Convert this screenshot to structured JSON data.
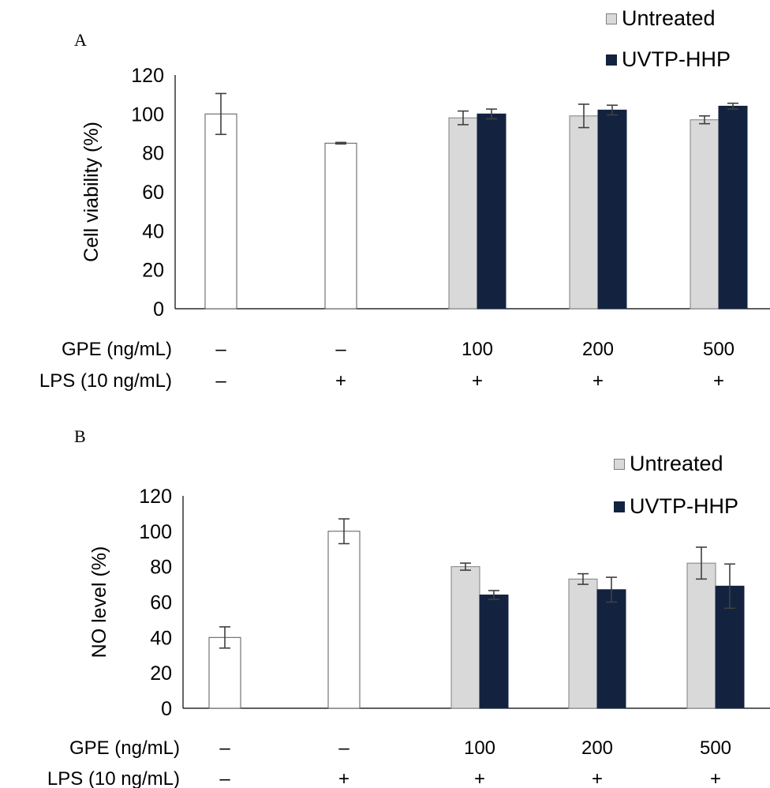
{
  "colors": {
    "control_fill": "#ffffff",
    "control_stroke": "#595959",
    "untreated": "#d9d9d9",
    "untreated_stroke": "#7f7f7f",
    "uvtp": "#13233f",
    "error_bar": "#404040",
    "axis": "#000000"
  },
  "conditions": {
    "gpe_label": "GPE (ng/mL)",
    "lps_label": "LPS (10 ng/mL)",
    "gpe_values": [
      "–",
      "–",
      "100",
      "200",
      "500"
    ],
    "lps_values": [
      "–",
      "+",
      "+",
      "+",
      "+"
    ]
  },
  "chart_data": [
    {
      "panel": "A",
      "type": "bar",
      "ylabel": "Cell viability (%)",
      "xlabel": "",
      "ylim": [
        0,
        120
      ],
      "yticks": [
        0,
        20,
        40,
        60,
        80,
        100,
        120
      ],
      "legend_position": "top-right",
      "legend": [
        "Untreated",
        "UVTP-HHP"
      ],
      "controls": [
        {
          "value": 100,
          "error": 10.5
        },
        {
          "value": 85,
          "error": 0.4
        }
      ],
      "categories": [
        "100",
        "200",
        "500"
      ],
      "series": [
        {
          "name": "Untreated",
          "values": [
            98,
            99,
            97
          ],
          "errors": [
            3.5,
            6,
            2
          ]
        },
        {
          "name": "UVTP-HHP",
          "values": [
            100,
            102,
            104
          ],
          "errors": [
            2.5,
            2.5,
            1.5
          ]
        }
      ]
    },
    {
      "panel": "B",
      "type": "bar",
      "ylabel": "NO level (%)",
      "xlabel": "",
      "ylim": [
        0,
        120
      ],
      "yticks": [
        0,
        20,
        40,
        60,
        80,
        100,
        120
      ],
      "legend_position": "top-right",
      "legend": [
        "Untreated",
        "UVTP-HHP"
      ],
      "controls": [
        {
          "value": 40,
          "error": 6
        },
        {
          "value": 100,
          "error": 7
        }
      ],
      "categories": [
        "100",
        "200",
        "500"
      ],
      "series": [
        {
          "name": "Untreated",
          "values": [
            80,
            73,
            82
          ],
          "errors": [
            2,
            3,
            9
          ]
        },
        {
          "name": "UVTP-HHP",
          "values": [
            64,
            67,
            69
          ],
          "errors": [
            2.5,
            7,
            12.5
          ]
        }
      ]
    }
  ]
}
